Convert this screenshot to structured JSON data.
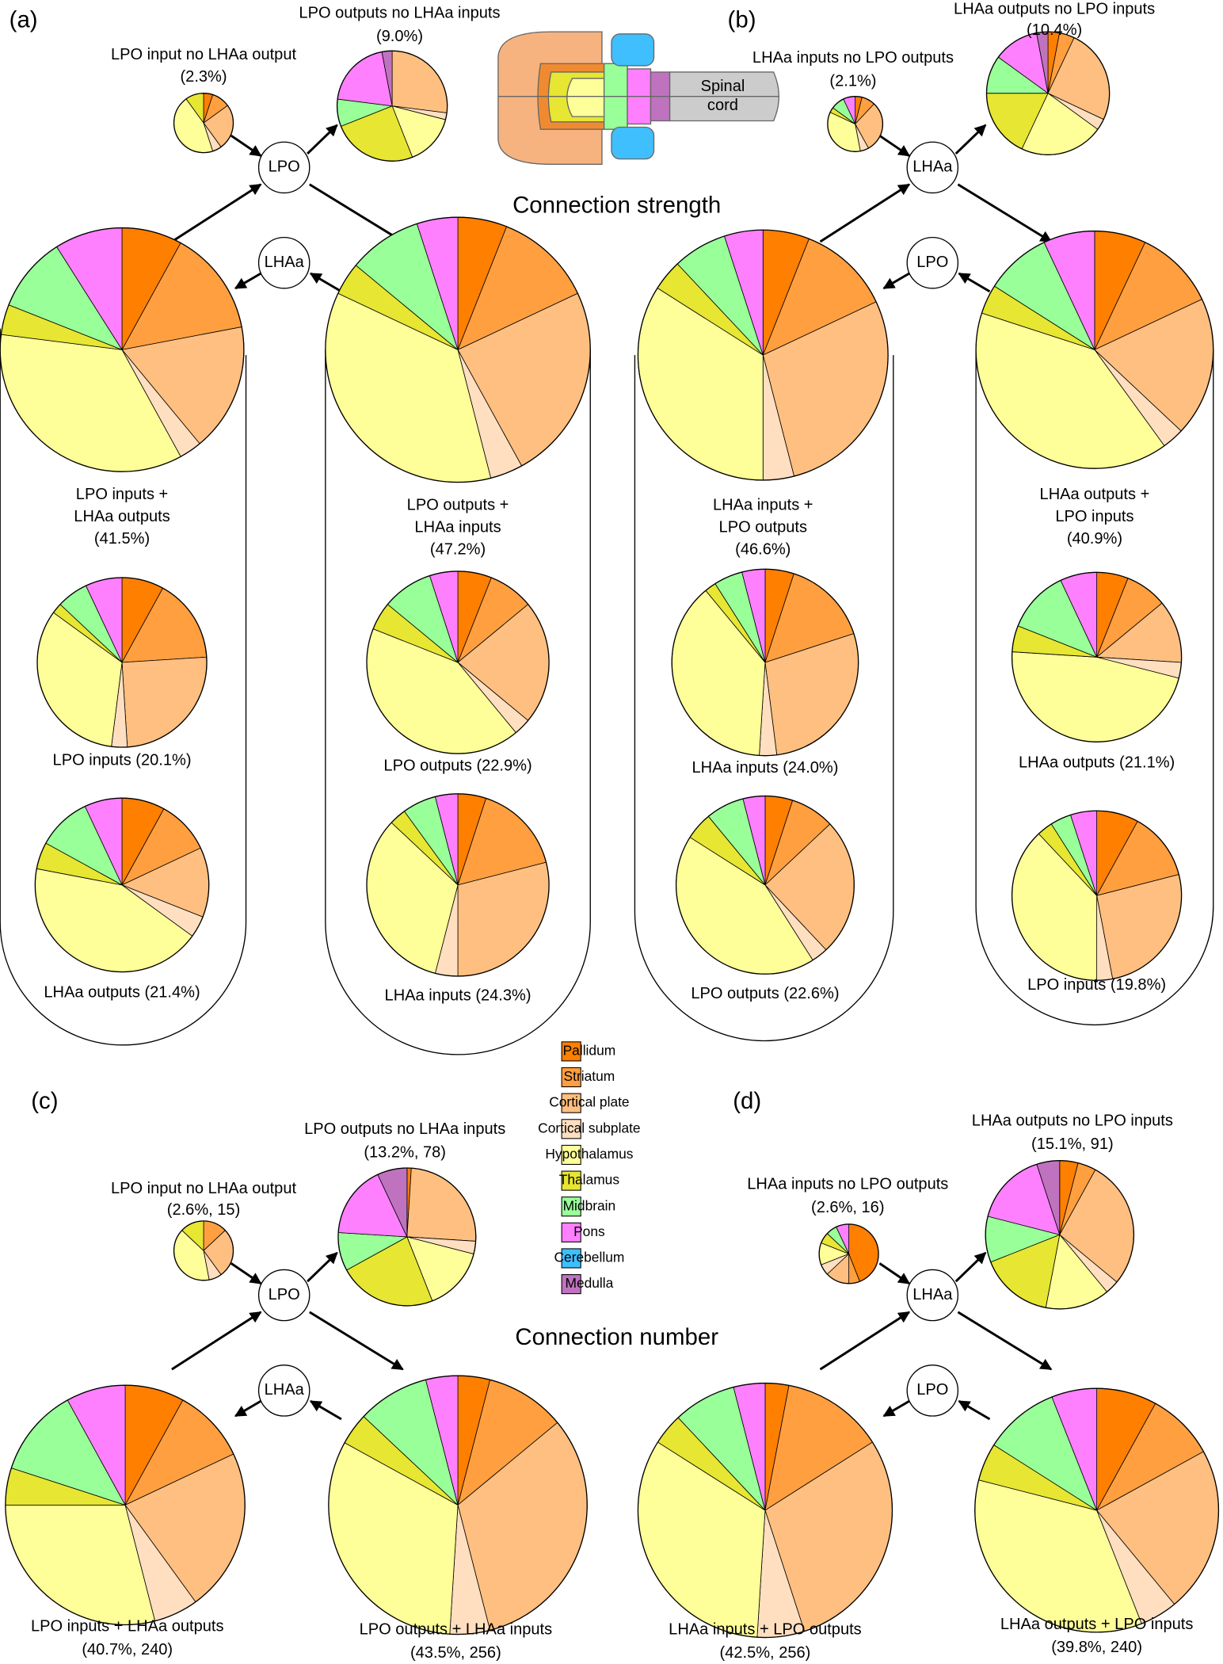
{
  "legend": {
    "categories": [
      "Pallidum",
      "Striatum",
      "Cortical plate",
      "Cortical subplate",
      "Hypothalamus",
      "Thalamus",
      "Midbrain",
      "Pons",
      "Cerebellum",
      "Medulla"
    ],
    "colors": [
      "#ff7f00",
      "#ff9f40",
      "#ffbf80",
      "#ffdfc0",
      "#ffff99",
      "#e6e633",
      "#99ff99",
      "#ff80ff",
      "#40bfff",
      "#bf73bf"
    ]
  },
  "panel_labels": [
    "(a)",
    "(b)",
    "(c)",
    "(d)"
  ],
  "headings": [
    "Connection strength",
    "Connection number"
  ],
  "nodes": [
    "LPO",
    "LHAa",
    "LHAa",
    "LPO",
    "LPO",
    "LHAa",
    "LHAa",
    "LPO"
  ],
  "brain_label": [
    "Spinal",
    "cord"
  ],
  "chart_data": [
    {
      "type": "pie",
      "title": [
        "LPO input no LHAa output",
        "(2.3%)"
      ],
      "values": [
        5,
        10,
        25,
        5,
        45,
        10,
        0,
        0,
        0,
        0
      ]
    },
    {
      "type": "pie",
      "title": [
        "LPO outputs no LHAa inputs",
        "(9.0%)"
      ],
      "values": [
        0,
        0,
        27,
        2,
        15,
        25,
        8,
        20,
        0,
        3
      ]
    },
    {
      "type": "pie",
      "title": [
        "LPO inputs +",
        "LHAa outputs",
        "(41.5%)"
      ],
      "values": [
        8,
        14,
        17,
        3,
        35,
        4,
        10,
        9,
        0,
        0
      ]
    },
    {
      "type": "pie",
      "title": [
        "LPO outputs +",
        "LHAa inputs",
        "(47.2%)"
      ],
      "values": [
        6,
        12,
        24,
        4,
        36,
        4,
        9,
        5,
        0,
        0
      ]
    },
    {
      "type": "pie",
      "title": [
        "LPO inputs (20.1%)"
      ],
      "values": [
        8,
        16,
        25,
        3,
        33,
        2,
        6,
        7,
        0,
        0
      ]
    },
    {
      "type": "pie",
      "title": [
        "LPO outputs (22.9%)"
      ],
      "values": [
        6,
        8,
        22,
        3,
        42,
        5,
        9,
        5,
        0,
        0
      ]
    },
    {
      "type": "pie",
      "title": [
        "LHAa outputs (21.4%)"
      ],
      "values": [
        8,
        10,
        13,
        4,
        43,
        5,
        10,
        7,
        0,
        0
      ]
    },
    {
      "type": "pie",
      "title": [
        "LHAa inputs (24.3%)"
      ],
      "values": [
        5,
        16,
        29,
        4,
        33,
        3,
        6,
        4,
        0,
        0
      ]
    },
    {
      "type": "pie",
      "title": [
        "LHAa inputs no LPO outputs",
        "(2.1%)"
      ],
      "values": [
        4,
        8,
        30,
        5,
        35,
        3,
        8,
        7,
        0,
        0
      ]
    },
    {
      "type": "pie",
      "title": [
        "LHAa outputs no LPO inputs",
        "(10.4%)"
      ],
      "values": [
        3,
        4,
        25,
        3,
        22,
        18,
        10,
        12,
        0,
        3
      ]
    },
    {
      "type": "pie",
      "title": [
        "LHAa inputs +",
        "LPO outputs",
        "(46.6%)"
      ],
      "values": [
        6,
        12,
        28,
        4,
        34,
        4,
        7,
        5,
        0,
        0
      ]
    },
    {
      "type": "pie",
      "title": [
        "LHAa outputs +",
        "LPO inputs",
        "(40.9%)"
      ],
      "values": [
        7,
        11,
        19,
        3,
        40,
        4,
        9,
        7,
        0,
        0
      ]
    },
    {
      "type": "pie",
      "title": [
        "LHAa inputs (24.0%)"
      ],
      "values": [
        5,
        15,
        28,
        3,
        38,
        2,
        5,
        4,
        0,
        0
      ]
    },
    {
      "type": "pie",
      "title": [
        "LHAa outputs (21.1%)"
      ],
      "values": [
        6,
        8,
        12,
        3,
        47,
        5,
        12,
        7,
        0,
        0
      ]
    },
    {
      "type": "pie",
      "title": [
        "LPO outputs (22.6%)"
      ],
      "values": [
        5,
        8,
        25,
        3,
        43,
        5,
        7,
        4,
        0,
        0
      ]
    },
    {
      "type": "pie",
      "title": [
        "LPO inputs (19.8%)"
      ],
      "values": [
        8,
        13,
        26,
        3,
        38,
        3,
        4,
        5,
        0,
        0
      ]
    },
    {
      "type": "pie",
      "title": [
        "LPO input no LHAa output",
        "(2.6%, 15)"
      ],
      "values": [
        0,
        13,
        27,
        7,
        40,
        13,
        0,
        0,
        0,
        0
      ]
    },
    {
      "type": "pie",
      "title": [
        "LPO outputs no LHAa inputs",
        "(13.2%, 78)"
      ],
      "values": [
        1,
        0,
        25,
        3,
        15,
        23,
        9,
        17,
        0,
        7
      ]
    },
    {
      "type": "pie",
      "title": [
        "LPO inputs + LHAa outputs",
        "(40.7%, 240)"
      ],
      "values": [
        8,
        10,
        22,
        6,
        29,
        5,
        12,
        8,
        0,
        0
      ]
    },
    {
      "type": "pie",
      "title": [
        "LPO outputs + LHAa inputs",
        "(43.5%, 256)"
      ],
      "values": [
        4,
        10,
        32,
        5,
        32,
        4,
        9,
        4,
        0,
        0
      ]
    },
    {
      "type": "pie",
      "title": [
        "LHAa inputs no LPO outputs",
        "(2.6%, 16)"
      ],
      "values": [
        44,
        6,
        13,
        6,
        12,
        6,
        6,
        7,
        0,
        0
      ]
    },
    {
      "type": "pie",
      "title": [
        "LHAa outputs no LPO inputs",
        "(15.1%, 91)"
      ],
      "values": [
        4,
        4,
        28,
        3,
        14,
        16,
        10,
        16,
        0,
        5
      ]
    },
    {
      "type": "pie",
      "title": [
        "LHAa inputs + LPO outputs",
        "(42.5%, 256)"
      ],
      "values": [
        3,
        13,
        29,
        6,
        33,
        4,
        8,
        4,
        0,
        0
      ]
    },
    {
      "type": "pie",
      "title": [
        "LHAa outputs + LPO inputs",
        "(39.8%, 240)"
      ],
      "values": [
        8,
        9,
        22,
        5,
        35,
        5,
        10,
        6,
        0,
        0
      ]
    }
  ]
}
